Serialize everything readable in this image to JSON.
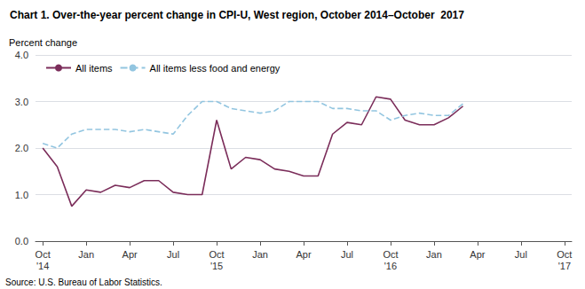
{
  "chart_data": {
    "type": "line",
    "title": "Chart 1. Over-the-year percent change in CPI-U, West region, October 2014–October  2017",
    "ylabel": "Percent change",
    "source": "Source: U.S. Bureau of Labor Statistics.",
    "categories": [
      "Oct\n'14",
      null,
      null,
      "Jan",
      null,
      null,
      "Apr",
      null,
      null,
      "Jul",
      null,
      null,
      "Oct\n'15",
      null,
      null,
      "Jan",
      null,
      null,
      "Apr",
      null,
      null,
      "Jul",
      null,
      null,
      "Oct\n'16",
      null,
      null,
      "Jan",
      null,
      null,
      "Apr",
      null,
      null,
      "Jul",
      null,
      null,
      "Oct\n'17"
    ],
    "series": [
      {
        "name": "All items",
        "color": "#7B2D5A",
        "line_style": "solid",
        "values": [
          2.0,
          1.6,
          0.75,
          1.1,
          1.05,
          1.2,
          1.15,
          1.3,
          1.3,
          1.05,
          1.0,
          1.0,
          2.6,
          1.55,
          1.8,
          1.75,
          1.55,
          1.5,
          1.4,
          1.4,
          2.3,
          2.55,
          2.5,
          3.1,
          3.05,
          2.6,
          2.5,
          2.5,
          2.65,
          2.9,
          null,
          null,
          null,
          null,
          null,
          null,
          null
        ]
      },
      {
        "name": "All items less food and energy",
        "color": "#92C5E0",
        "line_style": "dashed",
        "values": [
          2.1,
          2.0,
          2.3,
          2.4,
          2.4,
          2.4,
          2.35,
          2.4,
          2.35,
          2.3,
          2.7,
          3.0,
          3.0,
          2.85,
          2.8,
          2.75,
          2.8,
          3.0,
          3.0,
          3.0,
          2.85,
          2.85,
          2.8,
          2.8,
          2.6,
          2.7,
          2.75,
          2.7,
          2.7,
          2.95,
          null,
          null,
          null,
          null,
          null,
          null,
          null
        ]
      }
    ],
    "ylim": [
      0.0,
      4.0
    ],
    "yticks": [
      {
        "value": 0.0,
        "label": "0.0"
      },
      {
        "value": 1.0,
        "label": "1.0"
      },
      {
        "value": 2.0,
        "label": "2.0"
      },
      {
        "value": 3.0,
        "label": "3.0"
      },
      {
        "value": 4.0,
        "label": "4.0"
      }
    ],
    "grid": true,
    "legend": "upper left"
  }
}
